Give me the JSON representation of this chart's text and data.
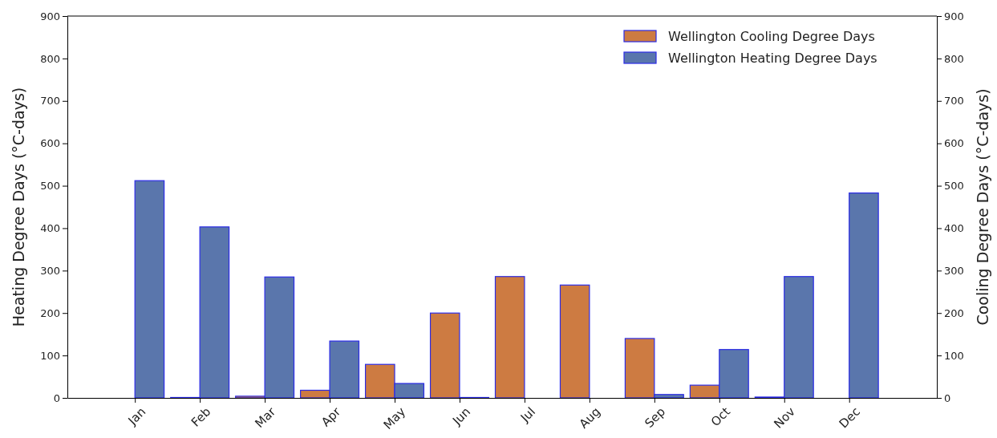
{
  "chart_data": {
    "type": "bar",
    "categories": [
      "Jan",
      "Feb",
      "Mar",
      "Apr",
      "May",
      "Jun",
      "Jul",
      "Aug",
      "Sep",
      "Oct",
      "Nov",
      "Dec"
    ],
    "series": [
      {
        "name": "Wellington Cooling Degree Days",
        "color": "#cd7b42",
        "axis": "y2",
        "values": [
          0,
          1,
          4,
          18,
          79,
          200,
          286,
          266,
          140,
          30,
          2,
          0
        ]
      },
      {
        "name": "Wellington Heating Degree Days",
        "color": "#5a76ac",
        "values": [
          512,
          403,
          285,
          134,
          34,
          1,
          0,
          0,
          8,
          114,
          286,
          483
        ]
      }
    ],
    "ylabel": "Heating Degree Days (°C-days)",
    "y2label": "Cooling Degree Days (°C-days)",
    "ylim": [
      0,
      900
    ],
    "yticks": [
      0,
      100,
      200,
      300,
      400,
      500,
      600,
      700,
      800,
      900
    ],
    "y2lim": [
      0,
      900
    ],
    "y2ticks": [
      0,
      100,
      200,
      300,
      400,
      500,
      600,
      700,
      800,
      900
    ],
    "legend": "top right",
    "grid": false
  }
}
